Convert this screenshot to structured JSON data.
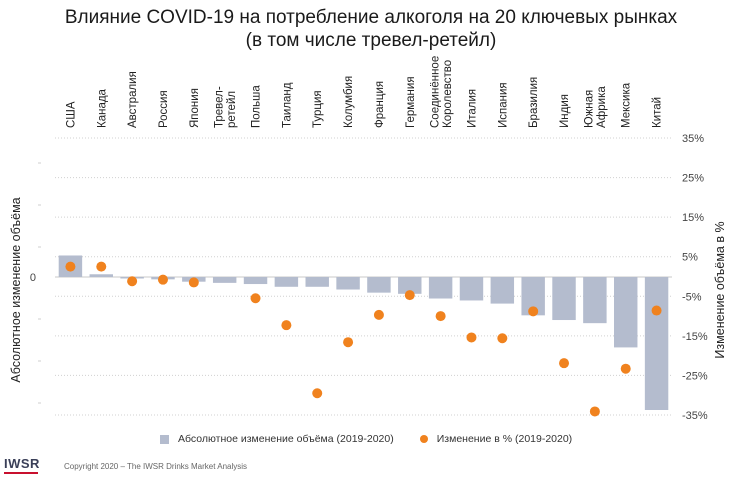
{
  "title_line1": "Влияние COVID-19 на потребление алкоголя на 20 ключевых рынках",
  "title_line2": "(в том числе тревел-ретейл)",
  "colors": {
    "bar": "#b4bcce",
    "dot": "#f0821e",
    "grid": "#d0d0d0"
  },
  "chart_data": {
    "type": "bar",
    "categories": [
      [
        "США"
      ],
      [
        "Канада"
      ],
      [
        "Австралия"
      ],
      [
        "Россия"
      ],
      [
        "Япония"
      ],
      [
        "Тревел-",
        "ретейл"
      ],
      [
        "Польша"
      ],
      [
        "Таиланд"
      ],
      [
        "Турция"
      ],
      [
        "Колумбия"
      ],
      [
        "Франция"
      ],
      [
        "Германия"
      ],
      [
        "Соединённое",
        "Королевство"
      ],
      [
        "Италия"
      ],
      [
        "Испания"
      ],
      [
        "Бразилия"
      ],
      [
        "Индия"
      ],
      [
        "Южная",
        "Африка"
      ],
      [
        "Мексика"
      ],
      [
        "Китай"
      ]
    ],
    "left_axis": {
      "label": "Абсолютное изменение объёма",
      "ticks": [
        "0"
      ]
    },
    "right_axis": {
      "label": "Изменение объёма в %",
      "ylim": [
        -35,
        35
      ],
      "ticks": [
        "35%",
        "25%",
        "15%",
        "5%",
        "-5%",
        "-15%",
        "-25%",
        "-35%"
      ]
    },
    "series": [
      {
        "name": "Абсолютное изменение объёма (2019-2020)",
        "kind": "bar",
        "values": [
          5.5,
          0.7,
          -0.3,
          -0.6,
          -1.2,
          -1.5,
          -1.8,
          -2.5,
          -2.5,
          -3.2,
          -4.0,
          -4.3,
          -5.5,
          -6.0,
          -6.8,
          -9.8,
          -11.0,
          -11.8,
          -18.0,
          -34.0
        ]
      },
      {
        "name": "Изменение в % (2019-2020)",
        "kind": "point",
        "values": [
          2.5,
          2.5,
          -1.2,
          -0.8,
          -1.5,
          null,
          -5.5,
          -12.3,
          -29.5,
          -16.6,
          -9.7,
          -4.7,
          -10.0,
          -15.4,
          -15.6,
          -8.8,
          -21.9,
          -34.1,
          -23.3,
          -8.6
        ]
      }
    ],
    "grid": true,
    "legend_position": "bottom"
  },
  "footer": {
    "logo": "IWSR",
    "copyright": "Copyright 2020 – The IWSR Drinks Market Analysis"
  }
}
